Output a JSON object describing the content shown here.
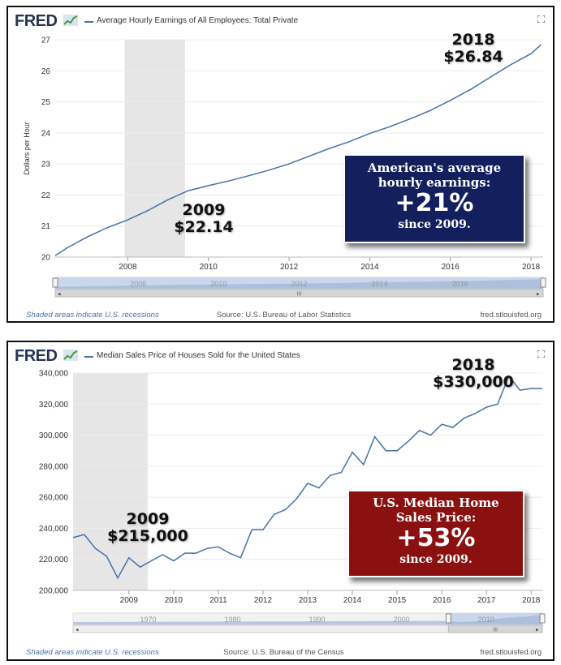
{
  "charts": [
    {
      "logo": "FRED",
      "series_title": "Average Hourly Earnings of All Employees: Total Private",
      "ylabel": "Dollars per Hour",
      "footer_left": "Shaded areas indicate U.S. recessions",
      "footer_source": "Source: U.S. Bureau of Labor Statistics",
      "footer_right": "fred.stlouisfed.org",
      "navigator_labels": [
        "2008",
        "2010",
        "2012",
        "2014",
        "2016"
      ],
      "annotation_start": {
        "year": "2009",
        "value": "$22.14"
      },
      "annotation_end": {
        "year": "2018",
        "value": "$26.84"
      },
      "callout": {
        "line1": "American's average",
        "line2": "hourly earnings:",
        "big": "+21%",
        "line3": "since 2009.",
        "color": "#14205e"
      }
    },
    {
      "logo": "FRED",
      "series_title": "Median Sales Price of Houses Sold for the United States",
      "ylabel": "",
      "footer_left": "Shaded areas indicate U.S. recessions",
      "footer_source": "Source: U.S. Bureau of the Census",
      "footer_right": "fred.stlouisfed.org",
      "navigator_labels": [
        "1970",
        "1980",
        "1990",
        "2000",
        "2010"
      ],
      "annotation_start": {
        "year": "2009",
        "value": "$215,000"
      },
      "annotation_end": {
        "year": "2018",
        "value": "$330,000"
      },
      "callout": {
        "line1": "U.S. Median Home",
        "line2": "Sales Price:",
        "big": "+53%",
        "line3": "since 2009.",
        "color": "#8b1111"
      }
    }
  ],
  "chart_data": [
    {
      "type": "line",
      "title": "Average Hourly Earnings of All Employees: Total Private",
      "ylabel": "Dollars per Hour",
      "ylim": [
        20,
        27
      ],
      "yticks": [
        20,
        21,
        22,
        23,
        24,
        25,
        26,
        27
      ],
      "xlim": [
        2006.2,
        2018.3
      ],
      "xticks": [
        2008,
        2010,
        2012,
        2014,
        2016,
        2018
      ],
      "recession": [
        2007.92,
        2009.42
      ],
      "series": [
        {
          "color": "#4572a7",
          "x": [
            2006.2,
            2006.5,
            2007.0,
            2007.5,
            2008.0,
            2008.5,
            2009.0,
            2009.5,
            2010.0,
            2010.5,
            2011.0,
            2011.5,
            2012.0,
            2012.5,
            2013.0,
            2013.5,
            2014.0,
            2014.5,
            2015.0,
            2015.5,
            2016.0,
            2016.5,
            2017.0,
            2017.5,
            2018.0,
            2018.25
          ],
          "values": [
            20.05,
            20.3,
            20.65,
            20.95,
            21.2,
            21.5,
            21.85,
            22.14,
            22.3,
            22.45,
            22.62,
            22.8,
            23.0,
            23.25,
            23.5,
            23.72,
            23.98,
            24.2,
            24.45,
            24.72,
            25.05,
            25.4,
            25.8,
            26.2,
            26.55,
            26.84
          ]
        }
      ]
    },
    {
      "type": "line",
      "title": "Median Sales Price of Houses Sold for the United States",
      "ylim": [
        200000,
        340000
      ],
      "yticks": [
        200000,
        220000,
        240000,
        260000,
        280000,
        300000,
        320000,
        340000
      ],
      "ytick_labels": [
        "200,000",
        "220,000",
        "240,000",
        "260,000",
        "280,000",
        "300,000",
        "320,000",
        "340,000"
      ],
      "xlim": [
        2007.75,
        2018.25
      ],
      "xticks": [
        2009,
        2010,
        2011,
        2012,
        2013,
        2014,
        2015,
        2016,
        2017,
        2018
      ],
      "recession": [
        2007.75,
        2009.42
      ],
      "series": [
        {
          "color": "#4572a7",
          "x": [
            2007.75,
            2008.0,
            2008.25,
            2008.5,
            2008.75,
            2009.0,
            2009.25,
            2009.5,
            2009.75,
            2010.0,
            2010.25,
            2010.5,
            2010.75,
            2011.0,
            2011.25,
            2011.5,
            2011.75,
            2012.0,
            2012.25,
            2012.5,
            2012.75,
            2013.0,
            2013.25,
            2013.5,
            2013.75,
            2014.0,
            2014.25,
            2014.5,
            2014.75,
            2015.0,
            2015.25,
            2015.5,
            2015.75,
            2016.0,
            2016.25,
            2016.5,
            2016.75,
            2017.0,
            2017.25,
            2017.5,
            2017.75,
            2018.0,
            2018.25
          ],
          "values": [
            234000,
            236000,
            227000,
            222000,
            208000,
            221000,
            215000,
            219000,
            223000,
            219000,
            224000,
            224000,
            227000,
            228000,
            224000,
            221000,
            239000,
            239000,
            249000,
            252000,
            259000,
            269000,
            266000,
            274000,
            276000,
            289000,
            281000,
            299000,
            290000,
            290000,
            296000,
            303000,
            300000,
            307000,
            305000,
            311000,
            314000,
            318000,
            320000,
            338000,
            329000,
            330000,
            330000
          ]
        }
      ]
    }
  ]
}
